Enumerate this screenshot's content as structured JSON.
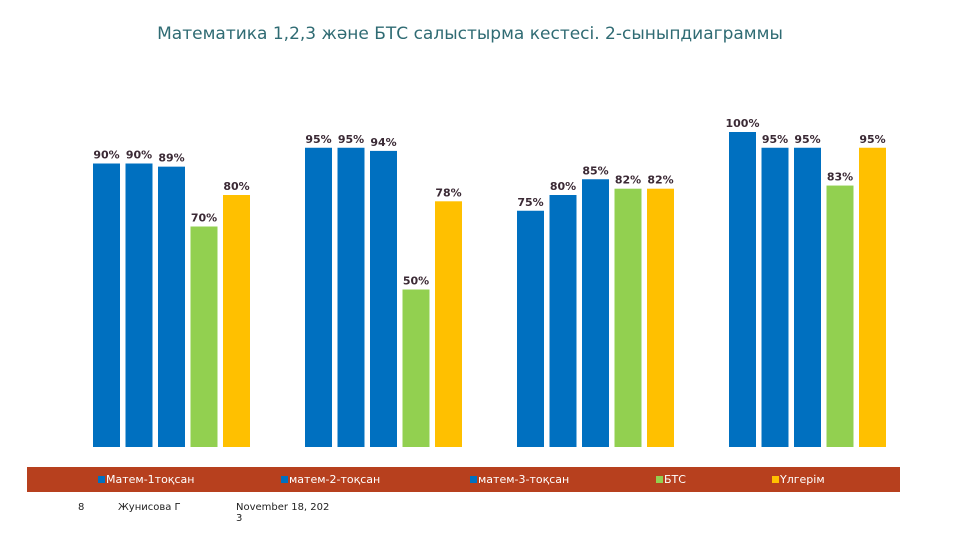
{
  "chart_data": {
    "type": "bar",
    "title": "Математика 1,2,3 және БТС салыстырма кестесі.  2-сыныпдиаграммы",
    "categories": [
      "",
      "",
      "",
      ""
    ],
    "ylim": [
      0,
      100
    ],
    "grid": false,
    "legend_position": "bottom",
    "series": [
      {
        "name": "Матем-1тоқсан",
        "color": "#0070c0",
        "values": [
          90,
          95,
          75,
          100
        ]
      },
      {
        "name": "матем-2-тоқсан",
        "color": "#0070c0",
        "values": [
          90,
          95,
          80,
          95
        ]
      },
      {
        "name": "матем-3-тоқсан",
        "color": "#0070c0",
        "values": [
          89,
          94,
          85,
          95
        ]
      },
      {
        "name": "БТС",
        "color": "#92d050",
        "values": [
          70,
          50,
          82,
          83
        ]
      },
      {
        "name": "Үлгерім",
        "color": "#ffc000",
        "values": [
          80,
          78,
          82,
          95
        ]
      }
    ]
  },
  "colors": {
    "legend_band": "#b7401e",
    "title": "#2f6b73",
    "label": "#3b2a35"
  },
  "footer": {
    "page": "8",
    "author": "Жунисова Г",
    "date_line1": "November 18, 202",
    "date_line2": "3"
  }
}
